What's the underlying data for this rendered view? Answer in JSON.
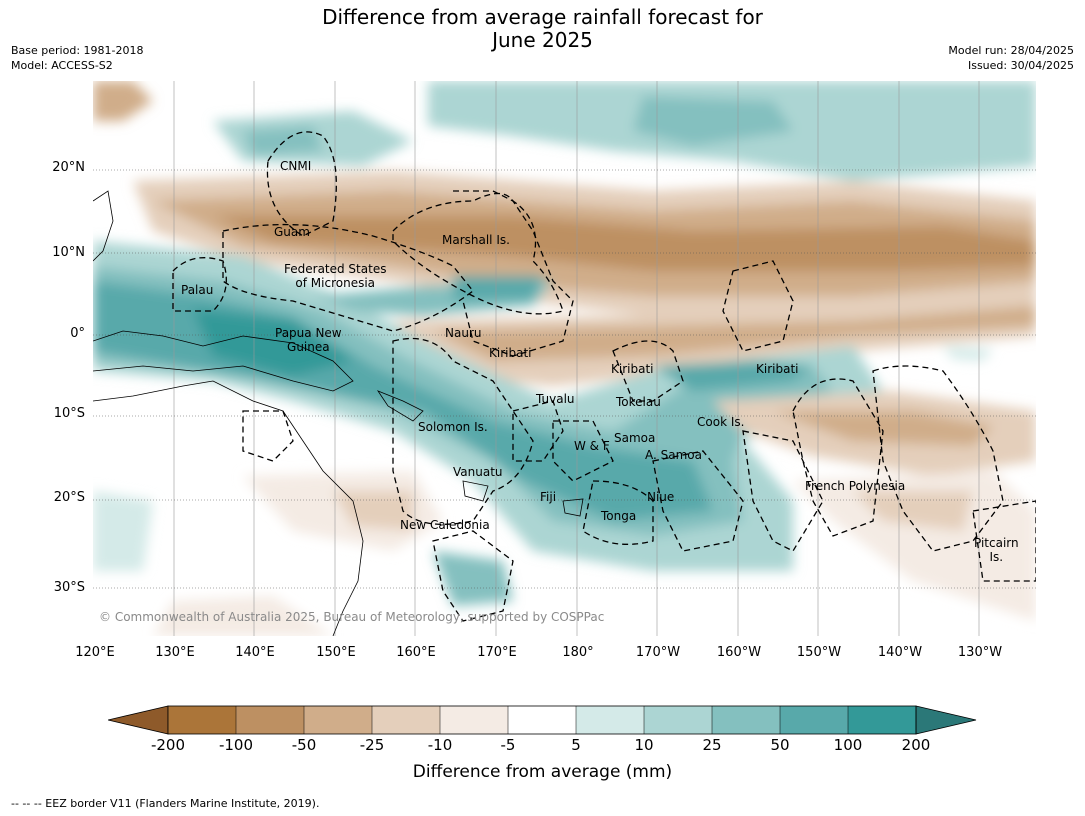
{
  "title_line1": "Difference from average rainfall forecast for",
  "title_line2": "June 2025",
  "meta_left": {
    "base_period": "Base period: 1981-2018",
    "model": "Model: ACCESS-S2"
  },
  "meta_right": {
    "model_run": "Model run: 28/04/2025",
    "issued": "Issued: 30/04/2025"
  },
  "lat_ticks": [
    "20°N",
    "10°N",
    "0°",
    "10°S",
    "20°S",
    "30°S"
  ],
  "lon_ticks": [
    "120°E",
    "130°E",
    "140°E",
    "150°E",
    "160°E",
    "170°E",
    "180°",
    "170°W",
    "160°W",
    "150°W",
    "140°W",
    "130°W"
  ],
  "regions": {
    "cnmi": "CNMI",
    "guam": "Guam",
    "marshall": "Marshall Is.",
    "fsm_line1": "Federated States",
    "fsm_line2": "of Micronesia",
    "palau": "Palau",
    "png_line1": "Papua New",
    "png_line2": "Guinea",
    "nauru": "Nauru",
    "kiribati_1": "Kiribati",
    "kiribati_2": "Kiribati",
    "kiribati_3": "Kiribati",
    "tuvalu": "Tuvalu",
    "tokelau": "Tokelau",
    "cook": "Cook Is.",
    "solomon": "Solomon Is.",
    "wf": "W & F",
    "samoa": "Samoa",
    "asamoa": "A. Samoa",
    "vanuatu": "Vanuatu",
    "fiji": "Fiji",
    "niue": "Niue",
    "tonga": "Tonga",
    "frpoly": "French Polynesia",
    "newcal": "New Caledonia",
    "pitcairn_line1": "Pitcairn",
    "pitcairn_line2": "Is."
  },
  "copyright": "© Commonwealth of Australia 2025, Bureau of Meteorology, supported by COSPPac",
  "colorbar": {
    "colors": [
      "#8e5a2a",
      "#ab7539",
      "#bd9062",
      "#d0ad8a",
      "#e4cfbb",
      "#f4ebe4",
      "#ffffff",
      "#d4eae8",
      "#acd5d3",
      "#84c0bf",
      "#58a9aa",
      "#339998",
      "#2b7878"
    ],
    "labels": [
      "-200",
      "-100",
      "-50",
      "-25",
      "-10",
      "-5",
      "5",
      "10",
      "25",
      "50",
      "100",
      "200"
    ],
    "title": "Difference from average (mm)"
  },
  "footnote": "--  --  -- EEZ border V11 (Flanders Marine Institute, 2019)."
}
